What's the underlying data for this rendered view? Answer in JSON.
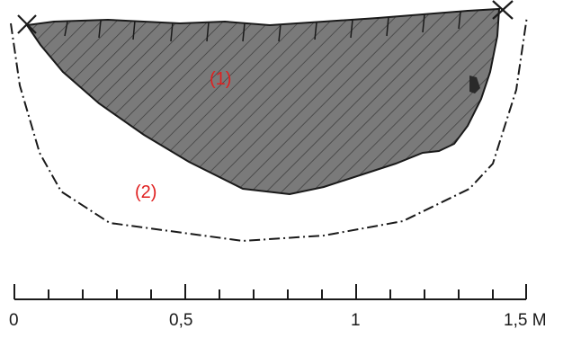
{
  "labels": {
    "region_1": "(1)",
    "region_2": "(2)"
  },
  "scale": {
    "ticks": [
      "0",
      "0,5",
      "1",
      "1,5 M"
    ],
    "minor_divisions": 15
  },
  "colors": {
    "fill_region_1": "#7a7a7a",
    "hatch": "#3a3a3a",
    "label": "#e02020",
    "stroke": "#1a1a1a"
  },
  "icons": {
    "endpoint_marker": "x-cross-icon"
  }
}
